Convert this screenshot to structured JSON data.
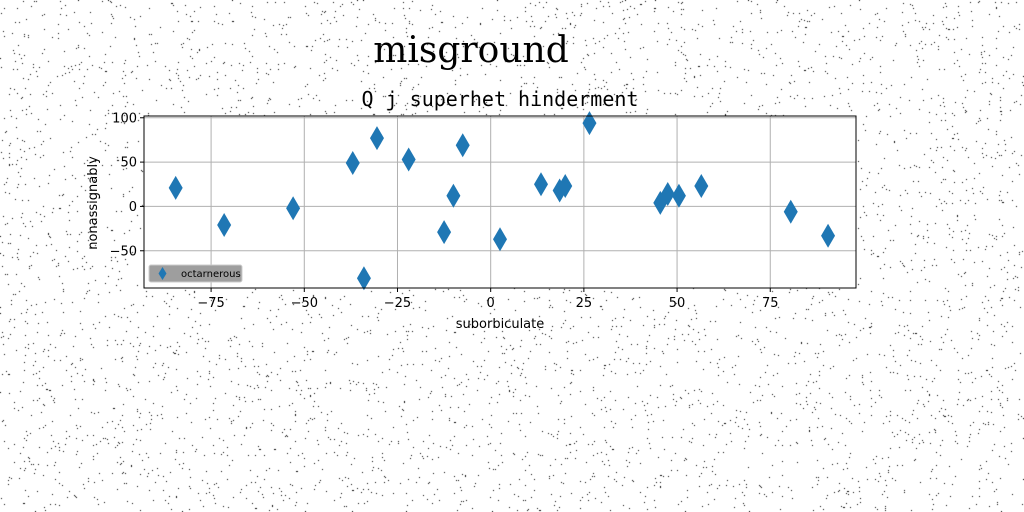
{
  "chart_data": {
    "type": "scatter",
    "suptitle": "misground",
    "title": "Q j superhet hinderment",
    "xlabel": "suborbiculate",
    "ylabel": "nonassignably",
    "xlim": [
      -93,
      98
    ],
    "ylim": [
      -92,
      102
    ],
    "xticks": [
      -75,
      -50,
      -25,
      0,
      25,
      50,
      75
    ],
    "yticks": [
      -50,
      0,
      50,
      100
    ],
    "grid": true,
    "legend_position": "lower-left",
    "marker": "thin-diamond",
    "color": "#1f77b4",
    "series": [
      {
        "name": "octarnerous",
        "points": [
          {
            "x": -84.5,
            "y": 21
          },
          {
            "x": -71.5,
            "y": -21
          },
          {
            "x": -53,
            "y": -2
          },
          {
            "x": -37,
            "y": 49
          },
          {
            "x": -30.5,
            "y": 77
          },
          {
            "x": -34,
            "y": -81
          },
          {
            "x": -22,
            "y": 53
          },
          {
            "x": -12.5,
            "y": -29
          },
          {
            "x": -10,
            "y": 12
          },
          {
            "x": -7.5,
            "y": 69
          },
          {
            "x": 2.5,
            "y": -37
          },
          {
            "x": 13.5,
            "y": 25
          },
          {
            "x": 18.5,
            "y": 18
          },
          {
            "x": 20,
            "y": 23
          },
          {
            "x": 26.5,
            "y": 94
          },
          {
            "x": 45.5,
            "y": 4
          },
          {
            "x": 47.5,
            "y": 14
          },
          {
            "x": 50.5,
            "y": 12
          },
          {
            "x": 56.5,
            "y": 23
          },
          {
            "x": 80.5,
            "y": -6
          },
          {
            "x": 90.5,
            "y": -33
          }
        ]
      }
    ]
  }
}
